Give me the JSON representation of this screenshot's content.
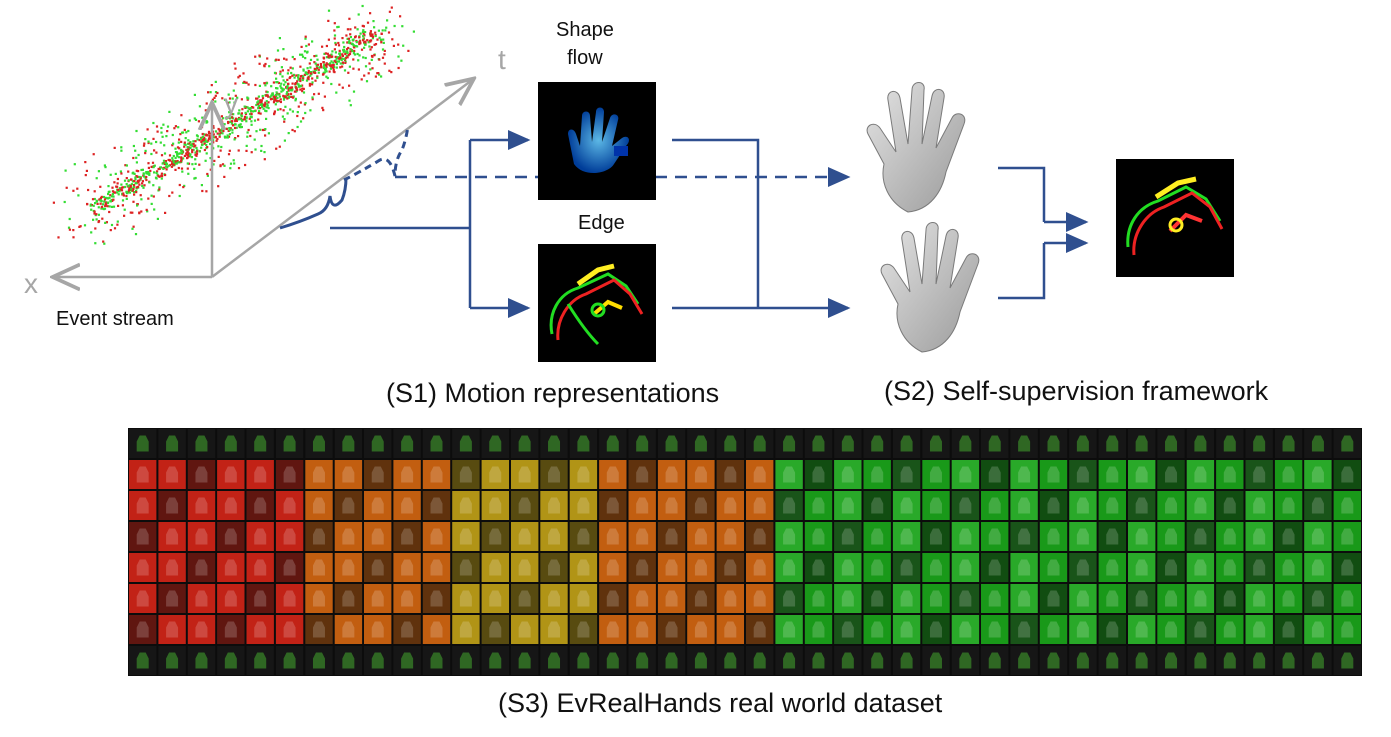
{
  "axes": {
    "x": "x",
    "y": "y",
    "t": "t"
  },
  "labels": {
    "event_stream": "Event stream",
    "shape_flow": "Shape\nflow",
    "edge": "Edge",
    "s1": "(S1) Motion representations",
    "s2": "(S2) Self-supervision framework",
    "s3": "(S3) EvRealHands real world dataset"
  },
  "colors": {
    "arrow": "#2f4f8f",
    "axis": "#a6a6a6",
    "event_pos": "#33dd33",
    "event_neg": "#dd2222",
    "panel_bg": "#000000"
  },
  "icons": {
    "hand_mesh": "hand-mesh-icon",
    "shape_flow": "shape-flow-image",
    "edge": "edge-image"
  }
}
